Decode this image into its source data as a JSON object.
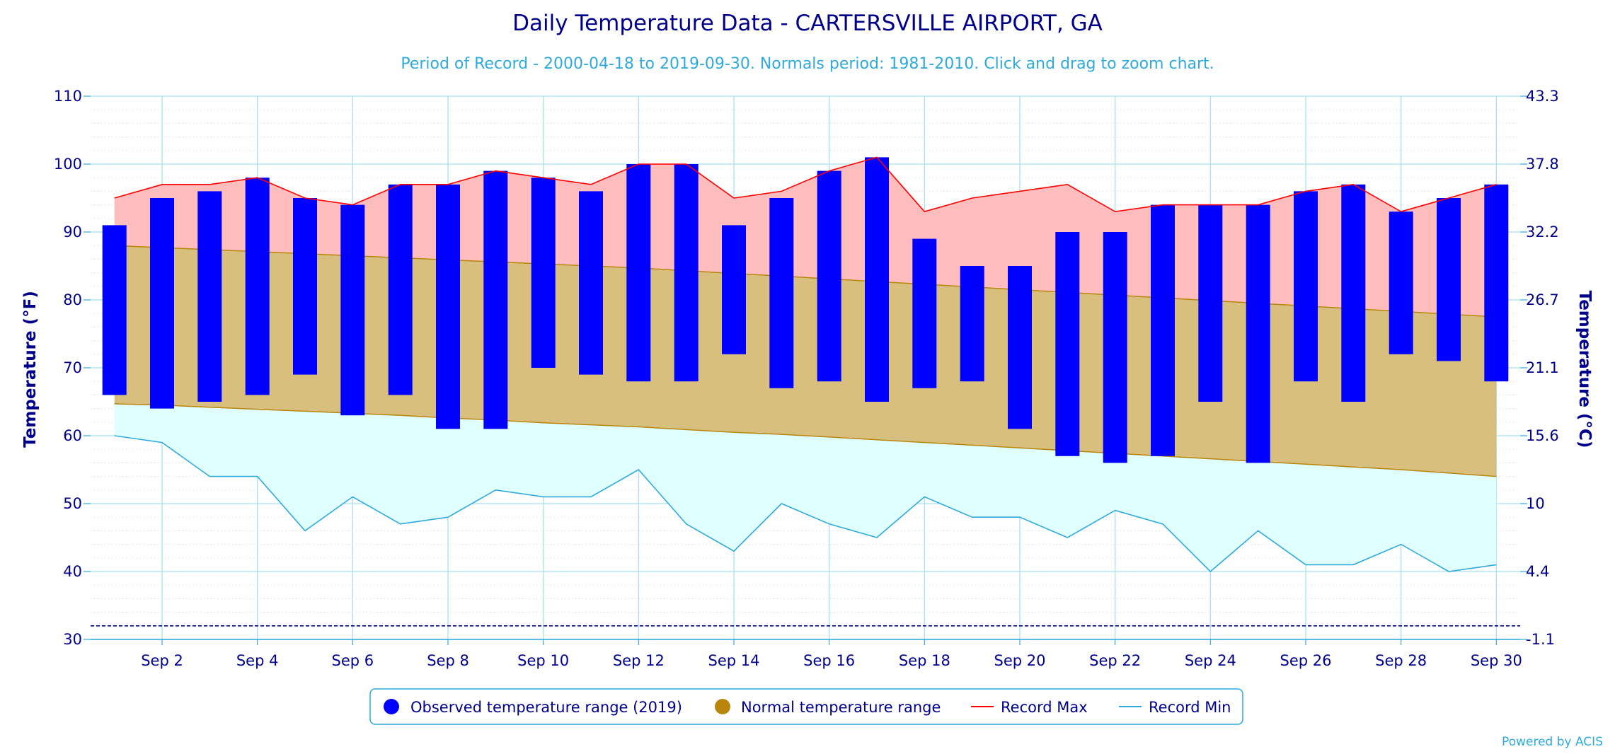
{
  "chart_data": {
    "type": "bar",
    "title": "Daily Temperature Data - CARTERSVILLE AIRPORT, GA",
    "subtitle": "Period of Record - 2000-04-18 to 2019-09-30. Normals period: 1981-2010. Click and drag to zoom chart.",
    "ylabel": "Temperature (°F)",
    "ylabel_right": "Temperature (°C)",
    "ylim": [
      30,
      110
    ],
    "yticks": [
      30,
      40,
      50,
      60,
      70,
      80,
      90,
      100,
      110
    ],
    "yticks_right": [
      "-1.1",
      "4.4",
      "10",
      "15.6",
      "21.1",
      "26.7",
      "32.2",
      "37.8",
      "43.3"
    ],
    "x": [
      1,
      2,
      3,
      4,
      5,
      6,
      7,
      8,
      9,
      10,
      11,
      12,
      13,
      14,
      15,
      16,
      17,
      18,
      19,
      20,
      21,
      22,
      23,
      24,
      25,
      26,
      27,
      28,
      29,
      30
    ],
    "xtick_labels": [
      {
        "day": 2,
        "label": "Sep 2"
      },
      {
        "day": 4,
        "label": "Sep 4"
      },
      {
        "day": 6,
        "label": "Sep 6"
      },
      {
        "day": 8,
        "label": "Sep 8"
      },
      {
        "day": 10,
        "label": "Sep 10"
      },
      {
        "day": 12,
        "label": "Sep 12"
      },
      {
        "day": 14,
        "label": "Sep 14"
      },
      {
        "day": 16,
        "label": "Sep 16"
      },
      {
        "day": 18,
        "label": "Sep 18"
      },
      {
        "day": 20,
        "label": "Sep 20"
      },
      {
        "day": 22,
        "label": "Sep 22"
      },
      {
        "day": 24,
        "label": "Sep 24"
      },
      {
        "day": 26,
        "label": "Sep 26"
      },
      {
        "day": 28,
        "label": "Sep 28"
      },
      {
        "day": 30,
        "label": "Sep 30"
      }
    ],
    "freezing_line": 32,
    "series": [
      {
        "name": "Observed temperature range (2019)",
        "color": "#0000ff",
        "low": [
          66,
          64,
          65,
          66,
          69,
          63,
          66,
          61,
          61,
          70,
          69,
          68,
          68,
          72,
          67,
          68,
          65,
          67,
          68,
          61,
          57,
          56,
          57,
          65,
          56,
          68,
          65,
          72,
          71,
          68
        ],
        "high": [
          91,
          95,
          96,
          98,
          95,
          94,
          97,
          97,
          99,
          98,
          96,
          100,
          100,
          91,
          95,
          99,
          101,
          89,
          85,
          85,
          90,
          90,
          94,
          94,
          94,
          96,
          97,
          93,
          95,
          97
        ]
      },
      {
        "name": "Normal temperature range",
        "color": "#b8860b",
        "fill": "#d9bf7e",
        "low": [
          64.7,
          64.5,
          64.2,
          63.9,
          63.6,
          63.3,
          63.0,
          62.6,
          62.3,
          61.9,
          61.6,
          61.3,
          60.9,
          60.5,
          60.2,
          59.8,
          59.4,
          59.0,
          58.6,
          58.2,
          57.8,
          57.4,
          57.0,
          56.6,
          56.2,
          55.8,
          55.4,
          55.0,
          54.5,
          54.0
        ],
        "high": [
          88.0,
          87.7,
          87.4,
          87.1,
          86.8,
          86.5,
          86.2,
          85.9,
          85.6,
          85.3,
          85.0,
          84.7,
          84.3,
          83.9,
          83.5,
          83.1,
          82.7,
          82.3,
          81.9,
          81.5,
          81.1,
          80.7,
          80.3,
          79.9,
          79.5,
          79.1,
          78.7,
          78.3,
          77.9,
          77.5
        ]
      },
      {
        "name": "Record Max",
        "color": "#ff0000",
        "fill": "#ffbdbd",
        "values": [
          95,
          97,
          97,
          98,
          95,
          94,
          97,
          97,
          99,
          98,
          97,
          100,
          100,
          95,
          96,
          99,
          101,
          93,
          95,
          96,
          97,
          93,
          94,
          94,
          94,
          96,
          97,
          93,
          95,
          97
        ]
      },
      {
        "name": "Record Min",
        "color": "#2eaadc",
        "fill": "#e0ffff",
        "values": [
          60,
          59,
          54,
          54,
          46,
          51,
          47,
          48,
          52,
          51,
          51,
          55,
          47,
          43,
          50,
          47,
          45,
          51,
          48,
          48,
          45,
          49,
          47,
          40,
          46,
          41,
          41,
          44,
          40,
          41
        ]
      }
    ],
    "legend_placement": "bottom-center",
    "grid": true
  },
  "footer": {
    "credit": "Powered by ACIS"
  }
}
